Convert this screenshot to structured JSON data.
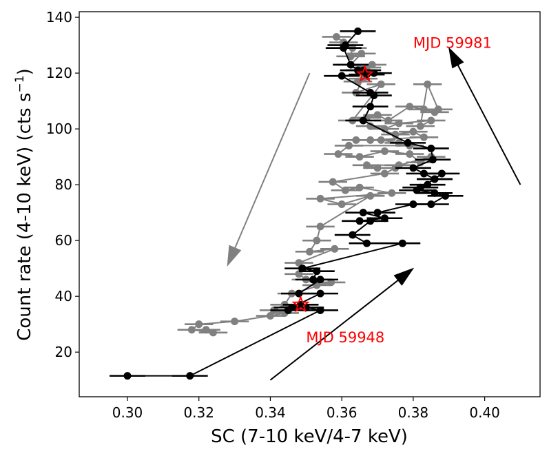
{
  "chart_data": {
    "type": "scatter",
    "xlabel": "SC (7-10 keV/4-7 keV)",
    "ylabel_main": "Count rate (4-10 keV) (cts s",
    "ylabel_sup": "−1",
    "ylabel_close": ")",
    "xlim": [
      0.2865,
      0.4155
    ],
    "ylim": [
      4,
      142
    ],
    "xticks": [
      0.3,
      0.32,
      0.34,
      0.36,
      0.38,
      0.4
    ],
    "xtick_labels": [
      "0.30",
      "0.32",
      "0.34",
      "0.36",
      "0.38",
      "0.40"
    ],
    "yticks": [
      20,
      40,
      60,
      80,
      100,
      120,
      140
    ],
    "ytick_labels": [
      "20",
      "40",
      "60",
      "80",
      "100",
      "120",
      "140"
    ],
    "grid": false,
    "series": [
      {
        "color": "#808080",
        "xerr": 0.004,
        "points": [
          [
            0.3585,
            133
          ],
          [
            0.3605,
            131
          ],
          [
            0.363,
            129
          ],
          [
            0.3625,
            126
          ],
          [
            0.3655,
            127
          ],
          [
            0.3625,
            123
          ],
          [
            0.367,
            122
          ],
          [
            0.3685,
            123
          ],
          [
            0.3645,
            117
          ],
          [
            0.366,
            118
          ],
          [
            0.364,
            113
          ],
          [
            0.371,
            116
          ],
          [
            0.363,
            103
          ],
          [
            0.367,
            104
          ],
          [
            0.37,
            105
          ],
          [
            0.373,
            103
          ],
          [
            0.379,
            108
          ],
          [
            0.383,
            107
          ],
          [
            0.386,
            106
          ],
          [
            0.387,
            107
          ],
          [
            0.384,
            116
          ],
          [
            0.382,
            101
          ],
          [
            0.385,
            103
          ],
          [
            0.376,
            102
          ],
          [
            0.372,
            100
          ],
          [
            0.368,
            101
          ],
          [
            0.375,
            98
          ],
          [
            0.38,
            99
          ],
          [
            0.383,
            97
          ],
          [
            0.368,
            96
          ],
          [
            0.364,
            96
          ],
          [
            0.371,
            96
          ],
          [
            0.376,
            95
          ],
          [
            0.379,
            94
          ],
          [
            0.362,
            94
          ],
          [
            0.359,
            91
          ],
          [
            0.365,
            90
          ],
          [
            0.372,
            92
          ],
          [
            0.379,
            91
          ],
          [
            0.382,
            88
          ],
          [
            0.385,
            90
          ],
          [
            0.376,
            87
          ],
          [
            0.367,
            87
          ],
          [
            0.37,
            86
          ],
          [
            0.375,
            86
          ],
          [
            0.372,
            84
          ],
          [
            0.3575,
            81
          ],
          [
            0.361,
            78
          ],
          [
            0.365,
            79
          ],
          [
            0.374,
            77
          ],
          [
            0.354,
            75
          ],
          [
            0.36,
            73
          ],
          [
            0.368,
            76
          ],
          [
            0.354,
            65
          ],
          [
            0.353,
            60
          ],
          [
            0.351,
            56
          ],
          [
            0.358,
            57
          ],
          [
            0.348,
            52
          ],
          [
            0.348,
            48
          ],
          [
            0.35,
            46
          ],
          [
            0.353,
            44
          ],
          [
            0.357,
            45
          ],
          [
            0.346,
            41
          ],
          [
            0.344,
            37
          ],
          [
            0.341,
            35
          ],
          [
            0.344,
            34
          ],
          [
            0.34,
            33
          ],
          [
            0.33,
            31
          ],
          [
            0.32,
            30
          ],
          [
            0.318,
            28
          ],
          [
            0.324,
            27
          ],
          [
            0.322,
            28
          ]
        ]
      },
      {
        "color": "#000000",
        "xerr": 0.005,
        "points": [
          [
            0.3645,
            135
          ],
          [
            0.361,
            130
          ],
          [
            0.3605,
            129
          ],
          [
            0.3625,
            123
          ],
          [
            0.3645,
            121
          ],
          [
            0.366,
            121
          ],
          [
            0.367,
            119.5
          ],
          [
            0.369,
            120
          ],
          [
            0.36,
            119
          ],
          [
            0.368,
            113
          ],
          [
            0.369,
            112
          ],
          [
            0.368,
            108
          ],
          [
            0.366,
            103
          ],
          [
            0.3785,
            95
          ],
          [
            0.385,
            93
          ],
          [
            0.3855,
            89
          ],
          [
            0.38,
            86
          ],
          [
            0.383,
            84
          ],
          [
            0.386,
            82
          ],
          [
            0.388,
            84
          ],
          [
            0.386,
            82
          ],
          [
            0.382,
            79
          ],
          [
            0.384,
            80
          ],
          [
            0.381,
            78
          ],
          [
            0.386,
            77
          ],
          [
            0.389,
            76
          ],
          [
            0.385,
            73
          ],
          [
            0.38,
            73
          ],
          [
            0.37,
            70
          ],
          [
            0.366,
            70
          ],
          [
            0.372,
            68
          ],
          [
            0.365,
            67
          ],
          [
            0.368,
            67
          ],
          [
            0.363,
            62
          ],
          [
            0.367,
            59
          ],
          [
            0.377,
            59
          ],
          [
            0.349,
            50
          ],
          [
            0.353,
            49
          ],
          [
            0.352,
            46
          ],
          [
            0.354,
            46
          ],
          [
            0.348,
            41
          ],
          [
            0.354,
            41
          ],
          [
            0.346,
            36
          ],
          [
            0.3485,
            37
          ],
          [
            0.345,
            35
          ],
          [
            0.35,
            36
          ],
          [
            0.354,
            35
          ],
          [
            0.3175,
            11.5
          ],
          [
            0.3,
            11.5
          ]
        ]
      }
    ],
    "stars": [
      {
        "x": 0.3665,
        "y": 119.5
      },
      {
        "x": 0.3485,
        "y": 37
      }
    ],
    "annotations": [
      {
        "text": "MJD 59981",
        "x": 0.38,
        "y": 131,
        "color": "#ff0000"
      },
      {
        "text": "MJD 59948",
        "x": 0.35,
        "y": 25.5,
        "color": "#ff0000"
      }
    ],
    "arrows": [
      {
        "from": [
          0.351,
          120
        ],
        "to": [
          0.328,
          51
        ],
        "color": "#808080"
      },
      {
        "from": [
          0.41,
          80
        ],
        "to": [
          0.39,
          129
        ],
        "color": "#000000"
      },
      {
        "from": [
          0.34,
          10
        ],
        "to": [
          0.38,
          50
        ],
        "color": "#000000"
      }
    ]
  }
}
